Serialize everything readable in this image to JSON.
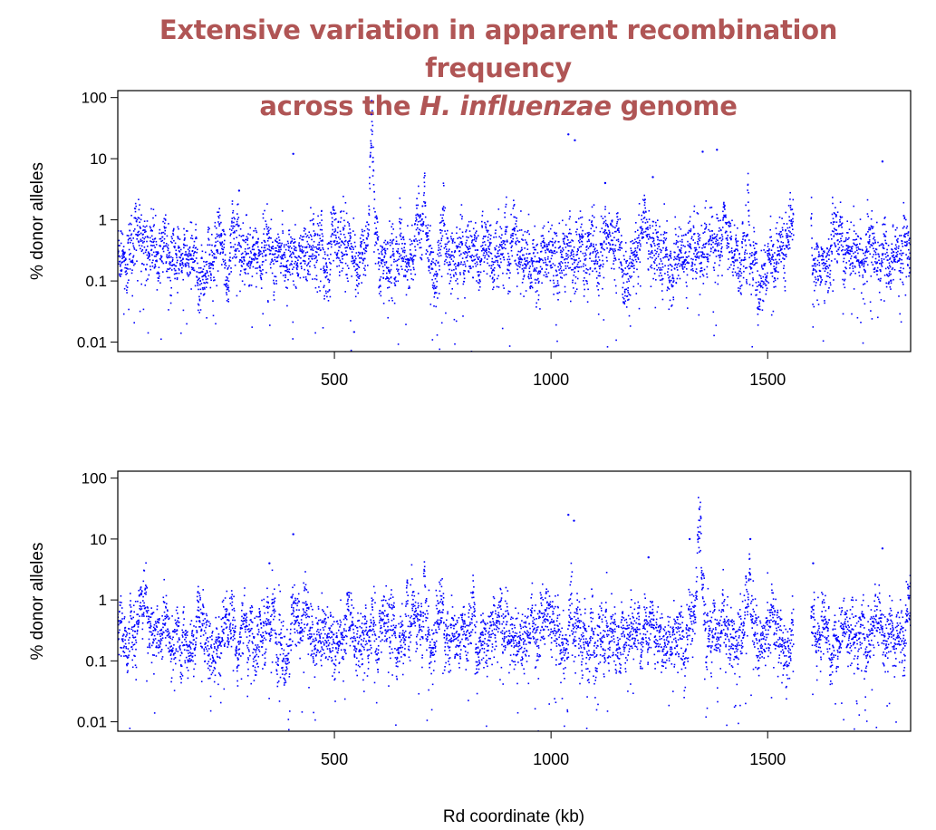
{
  "title": {
    "line1": "Extensive variation in apparent recombination frequency",
    "line2_prefix": "across the ",
    "line2_italic": "H. influenzae",
    "line2_suffix": " genome",
    "color": "#b05555"
  },
  "chart_data": [
    {
      "type": "scatter",
      "title": "",
      "ylabel": "% donor alleles",
      "xlabel": "",
      "yscale": "log",
      "xlim": [
        0,
        1830
      ],
      "ylim": [
        0.007,
        130
      ],
      "xticks": [
        500,
        1000,
        1500
      ],
      "xtick_labels": [
        "500",
        "1000",
        "1500"
      ],
      "yticks": [
        100,
        10,
        1,
        0.1,
        0.01
      ],
      "ytick_labels": [
        "100",
        "10",
        "1",
        "0.1",
        "0.01"
      ],
      "color": "#0000ff",
      "grid": false,
      "features": {
        "peaks": [
          {
            "x": 586,
            "y_max": 100,
            "width_kb": 7
          },
          {
            "x": 708,
            "y_max": 9,
            "width_kb": 3
          },
          {
            "x": 1400,
            "y_max": 2,
            "width_kb": 10
          },
          {
            "x": 1455,
            "y_max": 8,
            "width_kb": 3
          }
        ],
        "gaps_kb": [
          [
            1560,
            1600
          ]
        ],
        "baseline_y": 0.3,
        "outliers": [
          {
            "x": 405,
            "y": 12
          },
          {
            "x": 1040,
            "y": 25
          },
          {
            "x": 1055,
            "y": 20
          },
          {
            "x": 1350,
            "y": 13
          },
          {
            "x": 1383,
            "y": 14
          },
          {
            "x": 1765,
            "y": 9
          },
          {
            "x": 1235,
            "y": 5
          },
          {
            "x": 280,
            "y": 3
          },
          {
            "x": 1125,
            "y": 4
          }
        ]
      }
    },
    {
      "type": "scatter",
      "title": "",
      "ylabel": "% donor alleles",
      "xlabel": "Rd coordinate (kb)",
      "yscale": "log",
      "xlim": [
        0,
        1830
      ],
      "ylim": [
        0.007,
        130
      ],
      "xticks": [
        500,
        1000,
        1500
      ],
      "xtick_labels": [
        "500",
        "1000",
        "1500"
      ],
      "yticks": [
        100,
        10,
        1,
        0.1,
        0.01
      ],
      "ytick_labels": [
        "100",
        "10",
        "1",
        "0.1",
        "0.01"
      ],
      "color": "#0000ff",
      "grid": false,
      "features": {
        "peaks": [
          {
            "x": 1342,
            "y_max": 100,
            "width_kb": 9
          },
          {
            "x": 708,
            "y_max": 6,
            "width_kb": 3
          },
          {
            "x": 668,
            "y_max": 3.5,
            "width_kb": 3
          },
          {
            "x": 1458,
            "y_max": 7,
            "width_kb": 3
          }
        ],
        "gaps_kb": [
          [
            1560,
            1600
          ]
        ],
        "baseline_y": 0.3,
        "outliers": [
          {
            "x": 405,
            "y": 12
          },
          {
            "x": 1040,
            "y": 25
          },
          {
            "x": 1053,
            "y": 20
          },
          {
            "x": 1320,
            "y": 10
          },
          {
            "x": 1765,
            "y": 7
          },
          {
            "x": 1460,
            "y": 10
          },
          {
            "x": 350,
            "y": 4
          },
          {
            "x": 1225,
            "y": 5
          },
          {
            "x": 1605,
            "y": 4
          }
        ]
      }
    }
  ]
}
